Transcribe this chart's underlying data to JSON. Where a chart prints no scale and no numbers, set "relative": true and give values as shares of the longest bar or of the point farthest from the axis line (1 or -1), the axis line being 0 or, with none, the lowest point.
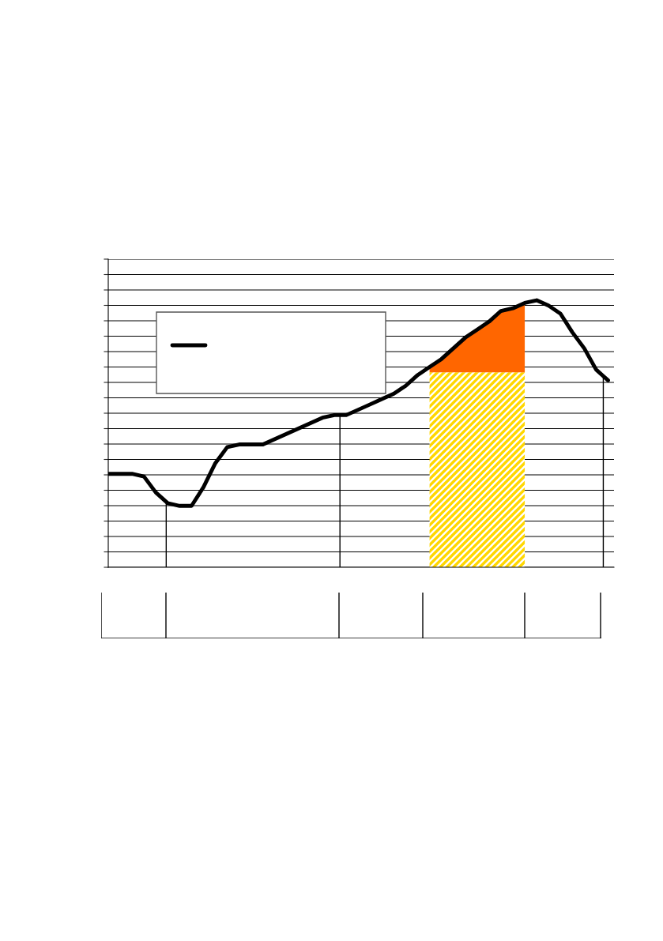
{
  "chart_data": {
    "type": "line",
    "relative": true,
    "grid": "y",
    "categories": [
      null,
      null,
      null,
      null,
      null,
      null,
      null,
      null,
      null,
      null,
      null,
      null,
      null,
      null,
      null,
      null,
      null,
      null,
      null,
      null,
      null,
      null,
      null,
      null,
      null,
      null,
      null,
      null,
      null,
      null,
      null,
      null,
      null,
      null,
      null,
      null,
      null,
      null,
      null,
      null,
      null,
      null,
      null
    ],
    "series": [
      {
        "type": "area",
        "color": "#ffd700",
        "values": [
          null,
          null,
          null,
          null,
          null,
          null,
          null,
          null,
          null,
          null,
          null,
          null,
          null,
          null,
          null,
          null,
          null,
          null,
          null,
          null,
          null,
          null,
          null,
          null,
          null,
          null,
          null,
          0.73,
          0.73,
          0.73,
          0.73,
          0.73,
          0.73,
          0.73,
          0.73,
          0.73,
          null,
          null,
          null,
          null,
          null,
          null,
          null
        ]
      },
      {
        "type": "area",
        "color": "#ff6600",
        "values": [
          null,
          null,
          null,
          null,
          null,
          null,
          null,
          null,
          null,
          null,
          null,
          null,
          null,
          null,
          null,
          null,
          null,
          null,
          null,
          null,
          null,
          null,
          null,
          null,
          null,
          null,
          null,
          0.75,
          0.78,
          0.82,
          0.86,
          0.89,
          0.92,
          0.96,
          0.97,
          0.99,
          null,
          null,
          null,
          null,
          null,
          null,
          null
        ]
      },
      {
        "color": "#000000",
        "values": [
          0.35,
          0.35,
          0.35,
          0.34,
          0.28,
          0.24,
          0.23,
          0.23,
          0.3,
          0.39,
          0.45,
          0.46,
          0.46,
          0.46,
          0.48,
          0.5,
          0.52,
          0.54,
          0.56,
          0.57,
          0.57,
          0.59,
          0.61,
          0.63,
          0.65,
          0.68,
          0.72,
          0.75,
          0.78,
          0.82,
          0.86,
          0.89,
          0.92,
          0.96,
          0.97,
          0.99,
          1.0,
          0.98,
          0.95,
          0.88,
          0.82,
          0.74,
          0.7
        ]
      }
    ]
  }
}
